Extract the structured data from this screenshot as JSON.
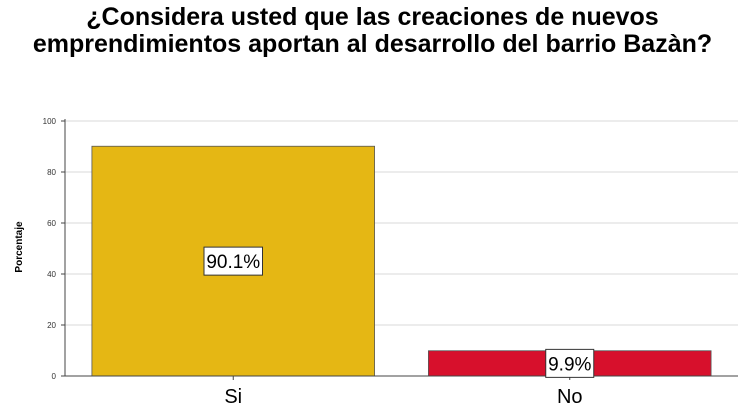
{
  "chart_data": {
    "type": "bar",
    "title": "¿Considera usted que las creaciones de nuevos emprendimientos aportan al desarrollo del barrio Bazàn?",
    "ylabel": "Porcentaje",
    "xlabel": "",
    "categories": [
      "Si",
      "No"
    ],
    "values": [
      90.1,
      9.9
    ],
    "data_labels": [
      "90.1%",
      "9.9%"
    ],
    "ylim": [
      0,
      100
    ],
    "yticks": [
      0,
      20,
      40,
      60,
      80,
      100
    ],
    "grid": true,
    "legend": "none",
    "colors": [
      "#e5b714",
      "#d7102c"
    ]
  }
}
